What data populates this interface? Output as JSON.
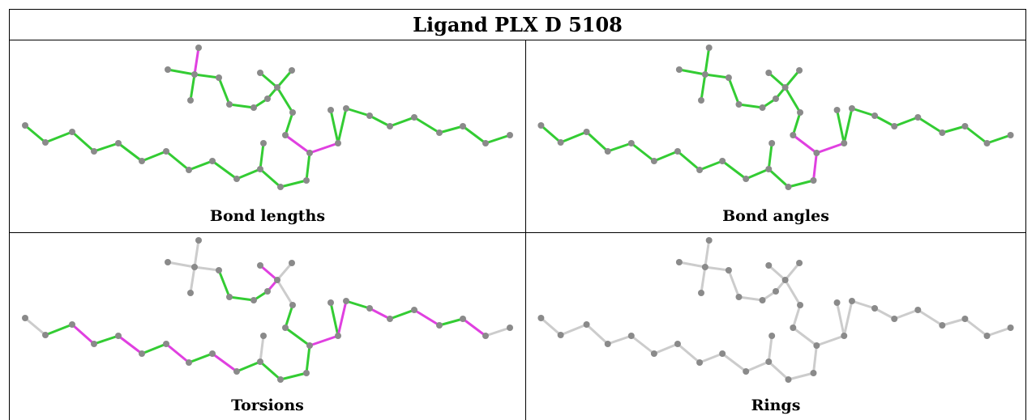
{
  "title": "Ligand PLX D 5108",
  "panels": [
    {
      "id": "bond-lengths",
      "caption": "Bond lengths",
      "highlight": [
        [
          0,
          1
        ],
        [
          15,
          17
        ],
        [
          31,
          32
        ]
      ]
    },
    {
      "id": "bond-angles",
      "caption": "Bond angles",
      "highlight": [
        [
          26,
          27
        ],
        [
          27,
          28
        ],
        [
          28,
          29
        ]
      ]
    },
    {
      "id": "torsions",
      "caption": "Torsions",
      "highlight": [
        [
          16,
          17
        ],
        [
          15,
          16
        ],
        [
          31,
          32
        ],
        [
          29,
          30
        ],
        [
          42,
          43
        ],
        [
          40,
          41
        ],
        [
          8,
          9
        ],
        [
          10,
          11
        ],
        [
          13,
          14
        ],
        [
          12,
          13
        ]
      ],
      "gray": [
        [
          0,
          1
        ],
        [
          0,
          2
        ],
        [
          0,
          3
        ],
        [
          0,
          4
        ],
        [
          14,
          15
        ],
        [
          14,
          18
        ],
        [
          14,
          19
        ],
        [
          22,
          23
        ],
        [
          31,
          33
        ],
        [
          45,
          46
        ]
      ]
    },
    {
      "id": "rings",
      "caption": "Rings",
      "all_gray": true
    }
  ],
  "colors": {
    "bond_green": "#33cc33",
    "bond_magenta": "#e040e0",
    "bond_gray": "#cccccc",
    "atom": "#8a8a8a"
  }
}
